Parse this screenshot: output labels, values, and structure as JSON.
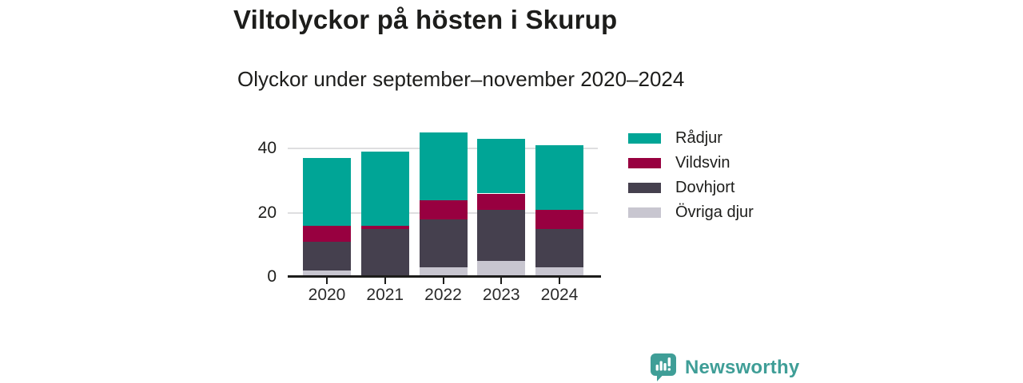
{
  "header": {
    "title": "Viltolyckor på hösten i Skurup",
    "subtitle": "Olyckor under september–november 2020–2024"
  },
  "chart_data": {
    "type": "bar",
    "stacked": true,
    "title": "Viltolyckor på hösten i Skurup",
    "subtitle": "Olyckor under september–november 2020–2024",
    "categories": [
      "2020",
      "2021",
      "2022",
      "2023",
      "2024"
    ],
    "series": [
      {
        "name": "Övriga djur",
        "color": "#c8c6d0",
        "values": [
          2,
          0,
          3,
          5,
          3
        ]
      },
      {
        "name": "Dovhjort",
        "color": "#45404e",
        "values": [
          9,
          15,
          15,
          16,
          12
        ]
      },
      {
        "name": "Vildsvin",
        "color": "#980040",
        "values": [
          5,
          1,
          6,
          5,
          6
        ]
      },
      {
        "name": "Rådjur",
        "color": "#00a596",
        "values": [
          21,
          23,
          21,
          17,
          20
        ]
      }
    ],
    "totals": [
      37,
      39,
      45,
      43,
      41
    ],
    "legend": [
      {
        "label": "Rådjur",
        "color": "#00a596"
      },
      {
        "label": "Vildsvin",
        "color": "#980040"
      },
      {
        "label": "Dovhjort",
        "color": "#45404e"
      },
      {
        "label": "Övriga djur",
        "color": "#c8c6d0"
      }
    ],
    "legend_position": "right",
    "xlabel": "",
    "ylabel": "",
    "y_ticks": [
      0,
      20,
      40
    ],
    "ylim": [
      0,
      47
    ],
    "grid": "horizontal",
    "gridline_color": "#dedee0",
    "axis_color": "#1d1d1b"
  },
  "footer": {
    "brand": "Newsworthy",
    "brand_color": "#3f9e97",
    "logo_icon": "newsworthy-speech-bubble-bar-chart-icon"
  }
}
